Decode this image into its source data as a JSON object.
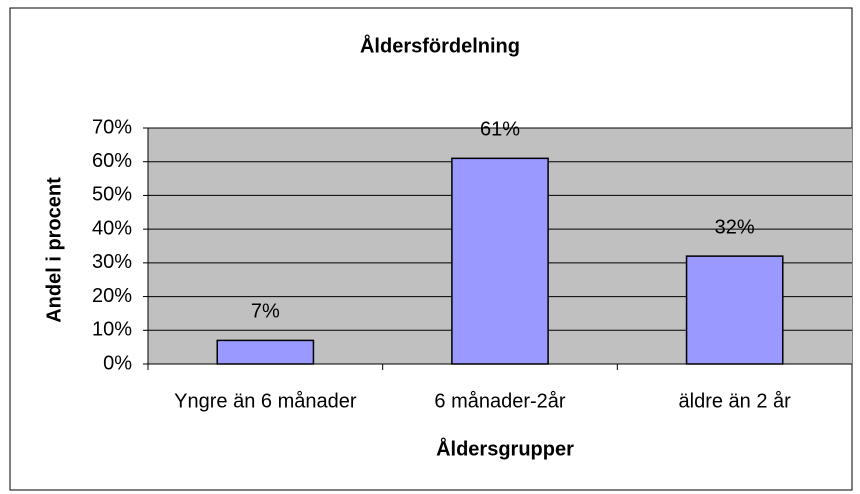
{
  "chart_data": {
    "type": "bar",
    "title": "Åldersfördelning",
    "x_label": "Åldersgrupper",
    "y_label": "Andel i procent",
    "categories": [
      "Yngre än 6 månader",
      "6 månader-2år",
      "äldre än 2 år"
    ],
    "values": [
      7,
      61,
      32
    ],
    "value_labels": [
      "7%",
      "61%",
      "32%"
    ],
    "color": "#9999ff",
    "ylim": [
      0,
      70
    ],
    "yticks": [
      {
        "value": 0,
        "label": "0%"
      },
      {
        "value": 10,
        "label": "10%"
      },
      {
        "value": 20,
        "label": "20%"
      },
      {
        "value": 30,
        "label": "30%"
      },
      {
        "value": 40,
        "label": "40%"
      },
      {
        "value": 50,
        "label": "50%"
      },
      {
        "value": 60,
        "label": "60%"
      },
      {
        "value": 70,
        "label": "70%"
      }
    ],
    "grid": true
  }
}
